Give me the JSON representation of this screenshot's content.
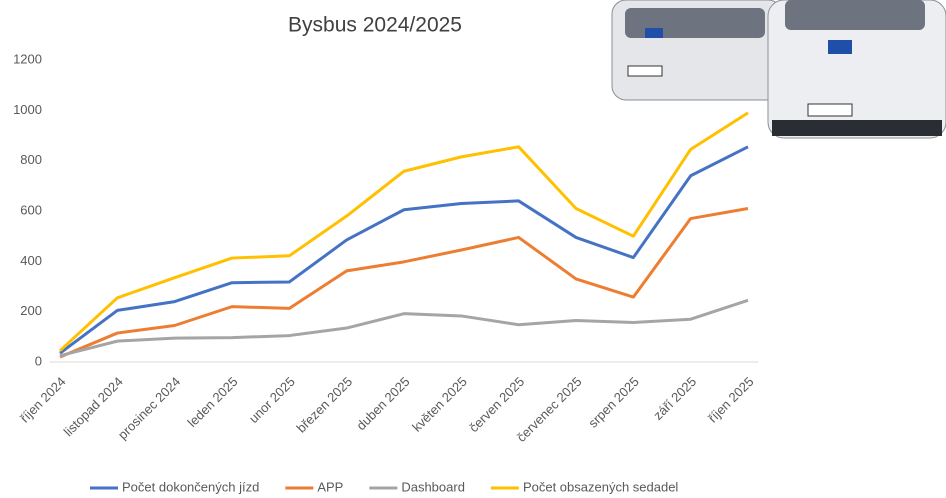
{
  "chart_data": {
    "type": "line",
    "title": "Bysbus 2024/2025",
    "categories": [
      "říjen 2024",
      "listopad 2024",
      "prosinec 2024",
      "leden 2025",
      "unor 2025",
      "březen 2025",
      "duben 2025",
      "květen 2025",
      "červen 2025",
      "červenec 2025",
      "srpen 2025",
      "září 2025",
      "říjen 2025"
    ],
    "series": [
      {
        "name": "Počet dokončených jízd",
        "color": "#4472c4",
        "values": [
          35,
          205,
          240,
          315,
          318,
          485,
          605,
          630,
          640,
          495,
          415,
          740,
          855
        ]
      },
      {
        "name": "APP",
        "color": "#ed7d31",
        "values": [
          20,
          115,
          145,
          220,
          213,
          362,
          398,
          445,
          495,
          330,
          258,
          570,
          610
        ]
      },
      {
        "name": "Dashboard",
        "color": "#a5a5a5",
        "values": [
          25,
          83,
          95,
          97,
          105,
          135,
          192,
          183,
          148,
          165,
          157,
          170,
          245
        ]
      },
      {
        "name": "Počet obsazených sedadel",
        "color": "#ffc000",
        "values": [
          45,
          255,
          335,
          413,
          422,
          580,
          758,
          815,
          855,
          610,
          500,
          845,
          990
        ]
      }
    ],
    "ylim": [
      0,
      1200
    ],
    "yticks": [
      0,
      200,
      400,
      600,
      800,
      1000,
      1200
    ],
    "grid": false,
    "legend": "bottom"
  }
}
